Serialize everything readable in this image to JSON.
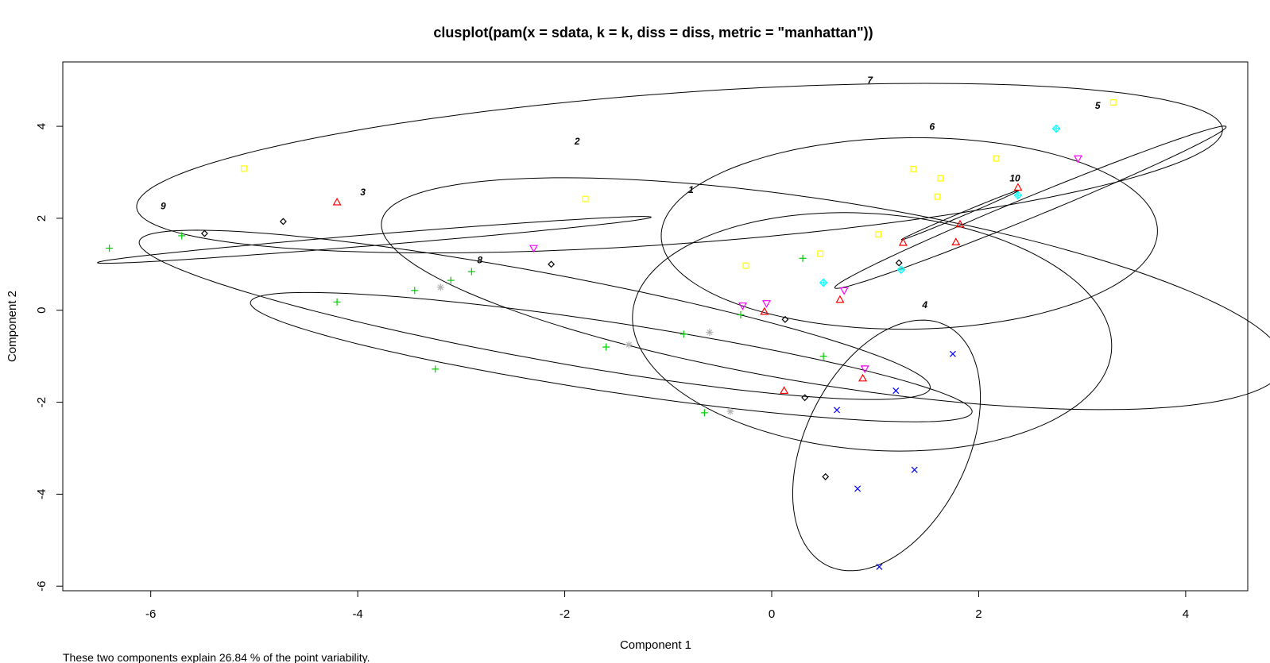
{
  "chart_data": {
    "type": "scatter",
    "title": "clusplot(pam(x = sdata, k = k, diss = diss, metric = \"manhattan\"))",
    "xlabel": "Component 1",
    "ylabel": "Component 2",
    "footnote": "These two components explain 26.84 % of the point variability.",
    "xlim": [
      -6.85,
      4.6
    ],
    "ylim": [
      -6.1,
      5.4
    ],
    "xticks": [
      -6,
      -4,
      -2,
      0,
      2,
      4
    ],
    "yticks": [
      -6,
      -4,
      -2,
      0,
      2,
      4
    ],
    "xtick_labels": [
      "-6",
      "-4",
      "-2",
      "0",
      "2",
      "4"
    ],
    "ytick_labels": [
      "-6",
      "-4",
      "-2",
      "0",
      "2",
      "4"
    ],
    "grid": false,
    "ellipses": [
      {
        "label": "1",
        "cx": 0.97,
        "cy": -0.47,
        "rx": 2.25,
        "ry": 2.65,
        "angle": 23,
        "label_x": -0.78,
        "label_y": 2.55
      },
      {
        "label": "2",
        "cx": 0.59,
        "cy": 0.36,
        "rx": 4.67,
        "ry": 1.89,
        "angle": -23,
        "label_x": -1.88,
        "label_y": 3.6
      },
      {
        "label": "3",
        "cx": -2.29,
        "cy": -0.1,
        "rx": 4.15,
        "ry": 0.88,
        "angle": -23.5,
        "label_x": -3.95,
        "label_y": 2.5
      },
      {
        "label": "4",
        "cx": 1.11,
        "cy": -2.94,
        "rx": 2.75,
        "ry": 0.83,
        "angle": 82,
        "label_x": 1.48,
        "label_y": 0.05
      },
      {
        "label": "5",
        "cx": 2.5,
        "cy": 2.24,
        "rx": 2.58,
        "ry": 0.18,
        "angle": 43,
        "label_x": 3.15,
        "label_y": 4.38
      },
      {
        "label": "6",
        "cx": 1.33,
        "cy": 1.67,
        "rx": 2.4,
        "ry": 2.08,
        "angle": 5,
        "label_x": 1.55,
        "label_y": 3.92
      },
      {
        "label": "7",
        "cx": -0.89,
        "cy": 3.09,
        "rx": 5.32,
        "ry": 1.62,
        "angle": 10,
        "label_x": 0.95,
        "label_y": 4.93
      },
      {
        "label": "8",
        "cx": -1.55,
        "cy": -1.02,
        "rx": 3.69,
        "ry": 0.72,
        "angle": -19.5,
        "label_x": -2.82,
        "label_y": 1.02
      },
      {
        "label": "9",
        "cx": -3.84,
        "cy": 1.53,
        "rx": 2.72,
        "ry": 0.12,
        "angle": 10.5,
        "label_x": -5.88,
        "label_y": 2.2
      },
      {
        "label": "10",
        "cx": 1.82,
        "cy": 2.07,
        "rx": 0.78,
        "ry": 0.03,
        "angle": 43.5,
        "label_x": 2.35,
        "label_y": 2.8
      }
    ],
    "series": [
      {
        "symbol": "plus",
        "color": "#00cc00",
        "points": [
          [
            -6.4,
            1.35
          ],
          [
            -5.7,
            1.62
          ],
          [
            -4.2,
            0.18
          ],
          [
            -3.45,
            0.43
          ],
          [
            -3.25,
            -1.28
          ],
          [
            -3.1,
            0.65
          ],
          [
            -2.9,
            0.84
          ],
          [
            -1.6,
            -0.8
          ],
          [
            -0.85,
            -0.52
          ],
          [
            -0.65,
            -2.23
          ],
          [
            -0.3,
            -0.1
          ],
          [
            0.3,
            1.13
          ],
          [
            0.5,
            -1.0
          ]
        ]
      },
      {
        "symbol": "triangle",
        "color": "#ff0000",
        "points": [
          [
            -4.2,
            2.35
          ],
          [
            0.12,
            -1.75
          ],
          [
            -0.07,
            -0.03
          ],
          [
            0.66,
            0.23
          ],
          [
            0.88,
            -1.48
          ],
          [
            1.78,
            1.48
          ],
          [
            1.82,
            1.87
          ],
          [
            2.38,
            2.67
          ],
          [
            1.27,
            1.47
          ]
        ]
      },
      {
        "symbol": "triangle-down",
        "color": "#ff00ff",
        "points": [
          [
            -2.3,
            1.35
          ],
          [
            -0.28,
            0.1
          ],
          [
            -0.05,
            0.15
          ],
          [
            0.7,
            0.43
          ],
          [
            0.9,
            -1.27
          ],
          [
            2.96,
            3.3
          ]
        ]
      },
      {
        "symbol": "diamond",
        "color": "#000000",
        "points": [
          [
            -5.48,
            1.67
          ],
          [
            -4.72,
            1.93
          ],
          [
            -2.13,
            1.0
          ],
          [
            0.13,
            -0.2
          ],
          [
            0.32,
            -1.9
          ],
          [
            0.52,
            -3.62
          ],
          [
            1.23,
            1.03
          ]
        ]
      },
      {
        "symbol": "square",
        "color": "#ffff00",
        "points": [
          [
            -5.1,
            3.08
          ],
          [
            -1.8,
            2.42
          ],
          [
            -0.25,
            0.97
          ],
          [
            0.47,
            1.23
          ],
          [
            1.03,
            1.65
          ],
          [
            1.37,
            3.07
          ],
          [
            1.6,
            2.47
          ],
          [
            1.63,
            2.87
          ],
          [
            2.17,
            3.3
          ],
          [
            3.3,
            4.52
          ]
        ]
      },
      {
        "symbol": "x",
        "color": "#0000ff",
        "points": [
          [
            0.83,
            -3.88
          ],
          [
            1.04,
            -5.58
          ],
          [
            1.2,
            -1.75
          ],
          [
            1.38,
            -3.47
          ],
          [
            1.75,
            -0.95
          ],
          [
            0.63,
            -2.17
          ]
        ]
      },
      {
        "symbol": "star",
        "color": "#b3b3b3",
        "points": [
          [
            -3.2,
            0.5
          ],
          [
            -1.38,
            -0.75
          ],
          [
            -0.6,
            -0.48
          ],
          [
            -0.4,
            -2.2
          ]
        ]
      },
      {
        "symbol": "diamond-plus",
        "color": "#00ffff",
        "points": [
          [
            0.5,
            0.6
          ],
          [
            1.25,
            0.88
          ],
          [
            2.38,
            2.5
          ],
          [
            2.75,
            3.95
          ]
        ]
      }
    ]
  }
}
